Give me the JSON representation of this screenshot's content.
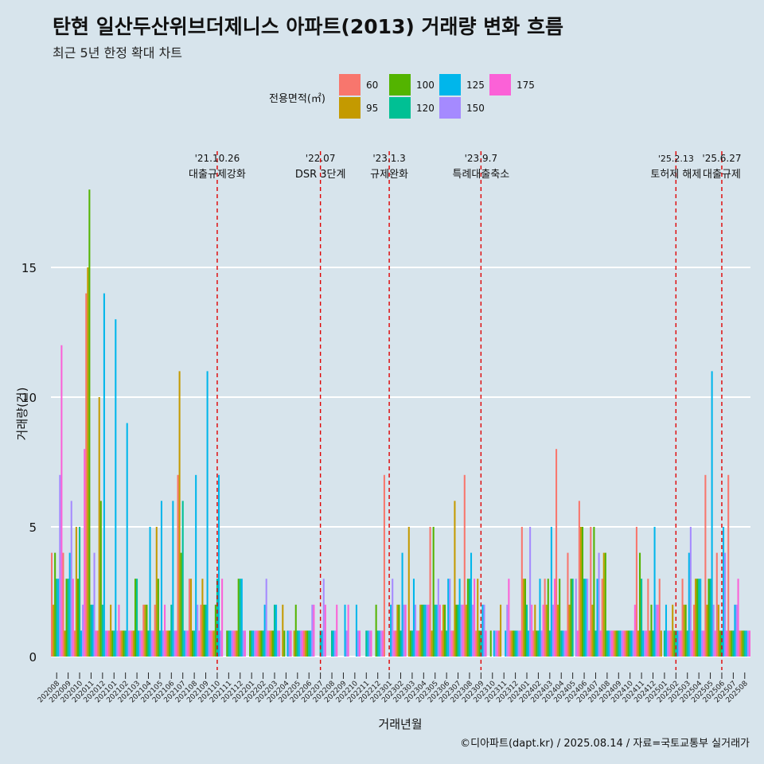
{
  "title": "탄현 일산두산위브더제니스 아파트(2013) 거래량 변화 흐름",
  "subtitle": "최근 5년 한정 확대 차트",
  "caption": "©디아파트(dapt.kr) / 2025.08.14 / 자료=국토교통부 실거래가",
  "chart_data": {
    "type": "bar",
    "xlabel": "거래년월",
    "ylabel": "거래량(건)",
    "ylim": [
      0,
      19
    ],
    "yticks": [
      0,
      5,
      10,
      15
    ],
    "legend": {
      "title": "전용면적(㎡)",
      "position": "top",
      "entries": [
        {
          "name": "60",
          "color": "#F8766D"
        },
        {
          "name": "95",
          "color": "#C49A00"
        },
        {
          "name": "100",
          "color": "#53B400"
        },
        {
          "name": "120",
          "color": "#00C094"
        },
        {
          "name": "125",
          "color": "#00B6EB"
        },
        {
          "name": "150",
          "color": "#A58AFF"
        },
        {
          "name": "175",
          "color": "#FB61D7"
        }
      ]
    },
    "categories": [
      "202008",
      "202009",
      "202010",
      "202011",
      "202012",
      "202101",
      "202102",
      "202103",
      "202104",
      "202105",
      "202106",
      "202107",
      "202108",
      "202109",
      "202110",
      "202111",
      "202112",
      "202201",
      "202202",
      "202203",
      "202204",
      "202205",
      "202206",
      "202207",
      "202208",
      "202209",
      "202210",
      "202211",
      "202212",
      "202301",
      "202302",
      "202303",
      "202304",
      "202305",
      "202306",
      "202307",
      "202308",
      "202309",
      "202310",
      "202311",
      "202312",
      "202401",
      "202402",
      "202403",
      "202404",
      "202405",
      "202406",
      "202407",
      "202408",
      "202409",
      "202410",
      "202411",
      "202412",
      "202501",
      "202502",
      "202503",
      "202504",
      "202505",
      "202506",
      "202507",
      "202508"
    ],
    "series": [
      {
        "name": "60",
        "values": [
          4,
          4,
          1,
          14,
          1,
          1,
          1,
          1,
          2,
          2,
          1,
          7,
          3,
          2,
          1,
          0,
          1,
          0,
          1,
          1,
          0,
          0,
          1,
          0,
          0,
          0,
          0,
          0,
          0,
          7,
          1,
          0,
          1,
          5,
          1,
          1,
          7,
          1,
          0,
          1,
          1,
          5,
          1,
          3,
          8,
          4,
          6,
          5,
          3,
          1,
          1,
          5,
          3,
          3,
          1,
          3,
          2,
          7,
          4,
          7,
          1
        ]
      },
      {
        "name": "95",
        "values": [
          2,
          1,
          5,
          15,
          10,
          2,
          1,
          1,
          2,
          5,
          1,
          11,
          3,
          3,
          1,
          0,
          1,
          0,
          1,
          1,
          2,
          1,
          1,
          0,
          0,
          0,
          0,
          0,
          0,
          0,
          2,
          5,
          2,
          1,
          2,
          6,
          2,
          3,
          0,
          2,
          1,
          3,
          2,
          2,
          2,
          2,
          5,
          2,
          4,
          1,
          1,
          1,
          1,
          1,
          2,
          2,
          3,
          2,
          2,
          1,
          1
        ]
      },
      {
        "name": "100",
        "values": [
          4,
          3,
          3,
          18,
          6,
          1,
          1,
          3,
          2,
          3,
          1,
          4,
          1,
          2,
          2,
          1,
          3,
          1,
          1,
          1,
          1,
          2,
          1,
          0,
          0,
          0,
          0,
          0,
          2,
          0,
          2,
          1,
          2,
          5,
          2,
          2,
          3,
          1,
          1,
          0,
          1,
          3,
          1,
          3,
          3,
          3,
          5,
          5,
          4,
          1,
          1,
          4,
          2,
          0,
          1,
          2,
          3,
          3,
          1,
          1,
          1
        ]
      },
      {
        "name": "120",
        "values": [
          3,
          3,
          5,
          2,
          2,
          1,
          1,
          3,
          1,
          1,
          2,
          6,
          1,
          2,
          3,
          1,
          3,
          1,
          1,
          2,
          0,
          1,
          1,
          1,
          1,
          0,
          0,
          1,
          1,
          0,
          1,
          1,
          2,
          2,
          1,
          2,
          3,
          1,
          0,
          0,
          1,
          2,
          1,
          1,
          1,
          3,
          3,
          1,
          1,
          1,
          1,
          3,
          1,
          1,
          1,
          1,
          3,
          3,
          1,
          1,
          1
        ]
      },
      {
        "name": "125",
        "values": [
          3,
          4,
          1,
          2,
          14,
          13,
          9,
          1,
          5,
          6,
          6,
          1,
          7,
          11,
          7,
          1,
          3,
          1,
          2,
          2,
          1,
          1,
          1,
          1,
          1,
          2,
          2,
          1,
          1,
          2,
          4,
          3,
          2,
          2,
          3,
          3,
          4,
          2,
          1,
          1,
          1,
          1,
          3,
          5,
          1,
          0,
          3,
          3,
          1,
          1,
          1,
          1,
          5,
          2,
          1,
          4,
          3,
          11,
          5,
          2,
          1
        ]
      },
      {
        "name": "150",
        "values": [
          7,
          6,
          2,
          4,
          1,
          1,
          1,
          1,
          1,
          1,
          1,
          1,
          2,
          1,
          1,
          1,
          1,
          1,
          3,
          1,
          1,
          1,
          2,
          3,
          1,
          1,
          1,
          1,
          1,
          3,
          2,
          2,
          2,
          3,
          3,
          2,
          2,
          2,
          1,
          2,
          1,
          5,
          1,
          2,
          1,
          3,
          3,
          4,
          1,
          1,
          1,
          1,
          2,
          1,
          1,
          5,
          1,
          2,
          4,
          2,
          1
        ]
      },
      {
        "name": "175",
        "values": [
          12,
          3,
          8,
          1,
          1,
          2,
          1,
          1,
          1,
          2,
          1,
          1,
          1,
          1,
          3,
          1,
          1,
          1,
          1,
          1,
          1,
          1,
          2,
          2,
          2,
          2,
          1,
          1,
          1,
          1,
          2,
          1,
          2,
          2,
          1,
          2,
          3,
          1,
          1,
          3,
          1,
          2,
          2,
          3,
          1,
          1,
          1,
          1,
          1,
          1,
          2,
          1,
          2,
          1,
          1,
          1,
          1,
          1,
          1,
          3,
          1
        ]
      }
    ],
    "events": [
      {
        "date": "'21.10.26",
        "label": "대출규제강화",
        "category": "202110"
      },
      {
        "date": "'22.07",
        "label": "DSR 3단계",
        "category": "202207"
      },
      {
        "date": "'23.1.3",
        "label": "규제완화",
        "category": "202301"
      },
      {
        "date": "'23.9.7",
        "label": "특례대출축소",
        "category": "202309"
      },
      {
        "date": "'25.2.13",
        "label": "토허제 해제",
        "category": "202502"
      },
      {
        "date": "'25.6.27",
        "label": "대출규제",
        "category": "202506"
      }
    ]
  }
}
